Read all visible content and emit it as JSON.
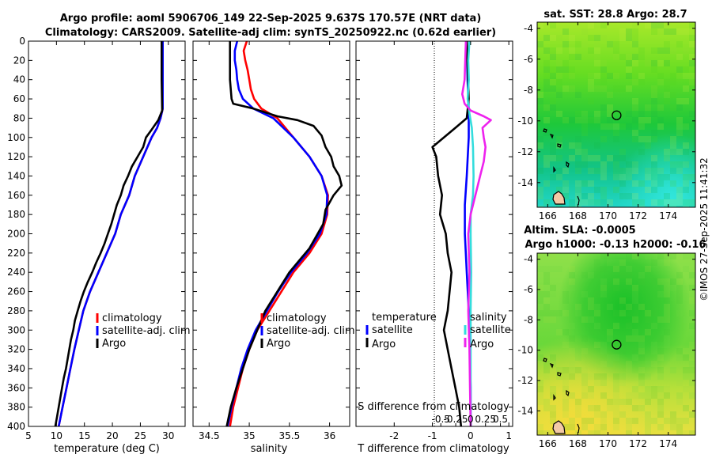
{
  "title": {
    "line1": "Argo profile: aoml 5906706_149 22-Sep-2025 9.637S 170.57E (NRT data)",
    "line2": "Climatology: CARS2009. Satellite-adj clim: synTS_20250922.nc (0.62d earlier)"
  },
  "footer": "©IMOS 27-Sep-2025 11:41:32",
  "colors": {
    "clim": "#ff0000",
    "sat": "#0000ff",
    "argo": "#000000",
    "sal_sat": "#33dddd",
    "sal_argo": "#ee22ee"
  },
  "chart_data": [
    {
      "id": "temperature",
      "type": "line",
      "xlabel": "temperature (deg C)",
      "xlim": [
        5,
        33
      ],
      "xticks": [
        5,
        10,
        15,
        20,
        25,
        30
      ],
      "ylim": [
        0,
        400
      ],
      "yticks": [
        0,
        20,
        40,
        60,
        80,
        100,
        120,
        140,
        160,
        180,
        200,
        220,
        240,
        260,
        280,
        300,
        320,
        340,
        360,
        380,
        400
      ],
      "legend": [
        "climatology",
        "satellite-adj. clim",
        "Argo"
      ],
      "legend_position": "lower-right",
      "series": [
        {
          "name": "climatology",
          "color": "#ff0000",
          "points": [
            [
              29.0,
              0
            ],
            [
              29.0,
              40
            ],
            [
              29.0,
              70
            ],
            [
              28.6,
              80
            ],
            [
              28.0,
              90
            ],
            [
              27.0,
              100
            ],
            [
              25.5,
              120
            ],
            [
              24.0,
              140
            ],
            [
              23.0,
              160
            ],
            [
              21.5,
              180
            ],
            [
              20.5,
              200
            ],
            [
              19.0,
              220
            ],
            [
              17.5,
              240
            ],
            [
              16.0,
              260
            ],
            [
              14.8,
              280
            ],
            [
              14.0,
              300
            ],
            [
              13.2,
              320
            ],
            [
              12.5,
              340
            ],
            [
              11.8,
              360
            ],
            [
              11.1,
              380
            ],
            [
              10.4,
              400
            ]
          ]
        },
        {
          "name": "satellite-adj. clim",
          "color": "#0000ff",
          "points": [
            [
              29.0,
              0
            ],
            [
              29.0,
              40
            ],
            [
              29.0,
              70
            ],
            [
              28.6,
              80
            ],
            [
              28.0,
              90
            ],
            [
              27.0,
              100
            ],
            [
              25.5,
              120
            ],
            [
              24.0,
              140
            ],
            [
              23.0,
              160
            ],
            [
              21.5,
              180
            ],
            [
              20.5,
              200
            ],
            [
              19.0,
              220
            ],
            [
              17.5,
              240
            ],
            [
              16.0,
              260
            ],
            [
              14.8,
              280
            ],
            [
              14.0,
              300
            ],
            [
              13.2,
              320
            ],
            [
              12.5,
              340
            ],
            [
              11.8,
              360
            ],
            [
              11.1,
              380
            ],
            [
              10.4,
              400
            ]
          ]
        },
        {
          "name": "Argo",
          "color": "#000000",
          "points": [
            [
              28.8,
              0
            ],
            [
              28.8,
              40
            ],
            [
              28.9,
              72
            ],
            [
              28.2,
              82
            ],
            [
              27.0,
              92
            ],
            [
              26.0,
              100
            ],
            [
              25.5,
              110
            ],
            [
              24.5,
              120
            ],
            [
              23.5,
              130
            ],
            [
              22.8,
              140
            ],
            [
              22.0,
              150
            ],
            [
              21.5,
              160
            ],
            [
              20.8,
              170
            ],
            [
              20.3,
              180
            ],
            [
              19.8,
              190
            ],
            [
              19.2,
              200
            ],
            [
              18.6,
              210
            ],
            [
              17.9,
              220
            ],
            [
              17.1,
              230
            ],
            [
              16.4,
              240
            ],
            [
              15.6,
              250
            ],
            [
              14.9,
              260
            ],
            [
              14.3,
              270
            ],
            [
              13.8,
              280
            ],
            [
              13.3,
              290
            ],
            [
              13.0,
              300
            ],
            [
              12.6,
              310
            ],
            [
              12.3,
              320
            ],
            [
              12.0,
              330
            ],
            [
              11.7,
              340
            ],
            [
              11.3,
              350
            ],
            [
              11.0,
              360
            ],
            [
              10.7,
              370
            ],
            [
              10.4,
              380
            ],
            [
              10.1,
              390
            ],
            [
              9.8,
              400
            ]
          ]
        }
      ]
    },
    {
      "id": "salinity",
      "type": "line",
      "xlabel": "salinity",
      "xlim": [
        34.3,
        36.25
      ],
      "xticks": [
        34.5,
        35,
        35.5,
        36
      ],
      "xticklabels": [
        "34.5",
        "35",
        "35.5",
        "36"
      ],
      "ylim": [
        0,
        400
      ],
      "legend": [
        "climatology",
        "satellite-adj. clim",
        "Argo"
      ],
      "legend_position": "lower-right",
      "series": [
        {
          "name": "climatology",
          "color": "#ff0000",
          "points": [
            [
              34.97,
              0
            ],
            [
              34.93,
              10
            ],
            [
              34.95,
              20
            ],
            [
              34.98,
              30
            ],
            [
              35.0,
              40
            ],
            [
              35.02,
              50
            ],
            [
              35.06,
              60
            ],
            [
              35.15,
              70
            ],
            [
              35.35,
              80
            ],
            [
              35.55,
              100
            ],
            [
              35.75,
              120
            ],
            [
              35.9,
              140
            ],
            [
              35.98,
              160
            ],
            [
              35.97,
              180
            ],
            [
              35.9,
              200
            ],
            [
              35.75,
              220
            ],
            [
              35.55,
              240
            ],
            [
              35.4,
              260
            ],
            [
              35.25,
              280
            ],
            [
              35.1,
              300
            ],
            [
              35.0,
              320
            ],
            [
              34.92,
              340
            ],
            [
              34.86,
              360
            ],
            [
              34.8,
              380
            ],
            [
              34.76,
              400
            ]
          ]
        },
        {
          "name": "satellite-adj. clim",
          "color": "#0000ff",
          "points": [
            [
              34.85,
              0
            ],
            [
              34.82,
              10
            ],
            [
              34.82,
              20
            ],
            [
              34.84,
              30
            ],
            [
              34.85,
              40
            ],
            [
              34.87,
              50
            ],
            [
              34.92,
              60
            ],
            [
              35.05,
              70
            ],
            [
              35.3,
              80
            ],
            [
              35.55,
              100
            ],
            [
              35.75,
              120
            ],
            [
              35.9,
              140
            ],
            [
              35.97,
              160
            ],
            [
              35.96,
              180
            ],
            [
              35.88,
              200
            ],
            [
              35.72,
              220
            ],
            [
              35.52,
              240
            ],
            [
              35.36,
              260
            ],
            [
              35.22,
              280
            ],
            [
              35.08,
              300
            ],
            [
              34.98,
              320
            ],
            [
              34.9,
              340
            ],
            [
              34.84,
              360
            ],
            [
              34.78,
              380
            ],
            [
              34.73,
              400
            ]
          ]
        },
        {
          "name": "Argo",
          "color": "#000000",
          "points": [
            [
              34.76,
              0
            ],
            [
              34.76,
              40
            ],
            [
              34.78,
              60
            ],
            [
              34.8,
              65
            ],
            [
              35.05,
              70
            ],
            [
              35.35,
              78
            ],
            [
              35.6,
              82
            ],
            [
              35.8,
              88
            ],
            [
              35.9,
              98
            ],
            [
              35.95,
              110
            ],
            [
              36.02,
              120
            ],
            [
              36.05,
              130
            ],
            [
              36.12,
              140
            ],
            [
              36.15,
              150
            ],
            [
              36.05,
              160
            ],
            [
              35.95,
              175
            ],
            [
              35.92,
              190
            ],
            [
              35.75,
              215
            ],
            [
              35.5,
              240
            ],
            [
              35.35,
              260
            ],
            [
              35.2,
              280
            ],
            [
              35.1,
              300
            ],
            [
              35.0,
              320
            ],
            [
              34.92,
              340
            ],
            [
              34.84,
              360
            ],
            [
              34.77,
              380
            ],
            [
              34.72,
              400
            ]
          ]
        }
      ]
    },
    {
      "id": "difference",
      "type": "line",
      "xlabel": "T difference from climatology",
      "xlim": [
        -3,
        1.1
      ],
      "xticks": [
        -2,
        -1,
        0,
        1
      ],
      "top_axis_label": "S difference from climatology",
      "top_ticks": [
        -0.5,
        -0.25,
        0,
        0.25,
        0.5
      ],
      "top_ticklabels": [
        "-0.5",
        "-0.25",
        "0",
        "0.25",
        "0.5"
      ],
      "ylim": [
        0,
        400
      ],
      "legend_temperature": {
        "heading": "temperature",
        "entries": [
          "satellite",
          "Argo"
        ]
      },
      "legend_salinity": {
        "heading": "salinity",
        "entries": [
          "satellite",
          "Argo"
        ]
      },
      "series": [
        {
          "name": "temperature satellite",
          "color": "#0000ff",
          "points": [
            [
              -0.1,
              0
            ],
            [
              -0.08,
              40
            ],
            [
              -0.05,
              70
            ],
            [
              -0.05,
              100
            ],
            [
              -0.1,
              140
            ],
            [
              -0.15,
              170
            ],
            [
              -0.15,
              200
            ],
            [
              -0.1,
              240
            ],
            [
              -0.05,
              280
            ],
            [
              -0.02,
              320
            ],
            [
              0.0,
              360
            ],
            [
              0.0,
              400
            ]
          ]
        },
        {
          "name": "temperature Argo",
          "color": "#000000",
          "points": [
            [
              -0.1,
              0
            ],
            [
              -0.05,
              60
            ],
            [
              -0.1,
              80
            ],
            [
              -0.4,
              90
            ],
            [
              -0.7,
              100
            ],
            [
              -1.0,
              110
            ],
            [
              -0.9,
              120
            ],
            [
              -0.85,
              140
            ],
            [
              -0.75,
              160
            ],
            [
              -0.8,
              180
            ],
            [
              -0.65,
              200
            ],
            [
              -0.6,
              220
            ],
            [
              -0.5,
              240
            ],
            [
              -0.55,
              260
            ],
            [
              -0.6,
              280
            ],
            [
              -0.7,
              300
            ],
            [
              -0.6,
              320
            ],
            [
              -0.5,
              340
            ],
            [
              -0.4,
              360
            ],
            [
              -0.3,
              380
            ],
            [
              -0.25,
              400
            ]
          ]
        },
        {
          "name": "salinity satellite",
          "color": "#33dddd",
          "points": [
            [
              -0.02,
              0
            ],
            [
              -0.04,
              20
            ],
            [
              -0.03,
              40
            ],
            [
              -0.05,
              60
            ],
            [
              -0.02,
              75
            ],
            [
              0.02,
              90
            ],
            [
              0.04,
              110
            ],
            [
              0.05,
              140
            ],
            [
              0.04,
              160
            ],
            [
              0.0,
              180
            ],
            [
              0.0,
              200
            ],
            [
              0.01,
              240
            ],
            [
              0.0,
              280
            ],
            [
              0.0,
              320
            ],
            [
              0.0,
              360
            ],
            [
              0.0,
              400
            ]
          ]
        },
        {
          "name": "salinity Argo",
          "color": "#ee22ee",
          "points": [
            [
              -0.08,
              0
            ],
            [
              -0.09,
              20
            ],
            [
              -0.1,
              40
            ],
            [
              -0.14,
              55
            ],
            [
              -0.1,
              65
            ],
            [
              0.0,
              72
            ],
            [
              0.22,
              78
            ],
            [
              0.34,
              82
            ],
            [
              0.2,
              90
            ],
            [
              0.22,
              100
            ],
            [
              0.25,
              110
            ],
            [
              0.22,
              125
            ],
            [
              0.16,
              140
            ],
            [
              0.08,
              160
            ],
            [
              0.0,
              180
            ],
            [
              -0.04,
              200
            ],
            [
              -0.02,
              240
            ],
            [
              -0.04,
              280
            ],
            [
              -0.02,
              320
            ],
            [
              -0.01,
              360
            ],
            [
              0.0,
              400
            ]
          ]
        }
      ]
    },
    {
      "id": "map_sst",
      "type": "heatmap",
      "title": "sat. SST: 28.8 Argo: 28.7",
      "xlim": [
        165.3,
        175.8
      ],
      "ylim": [
        -15.6,
        -3.6
      ],
      "xticks": [
        166,
        168,
        170,
        172,
        174
      ],
      "yticks": [
        -4,
        -6,
        -8,
        -10,
        -12,
        -14
      ],
      "marker": {
        "lon": 170.57,
        "lat": -9.637
      }
    },
    {
      "id": "map_sla",
      "type": "heatmap",
      "title": "Altim. SLA: -0.0005",
      "subtitle": "Argo h1000: -0.13 h2000: -0.16",
      "xlim": [
        165.3,
        175.8
      ],
      "ylim": [
        -15.6,
        -3.6
      ],
      "xticks": [
        166,
        168,
        170,
        172,
        174
      ],
      "yticks": [
        -4,
        -6,
        -8,
        -10,
        -12,
        -14
      ],
      "marker": {
        "lon": 170.57,
        "lat": -9.637
      }
    }
  ]
}
